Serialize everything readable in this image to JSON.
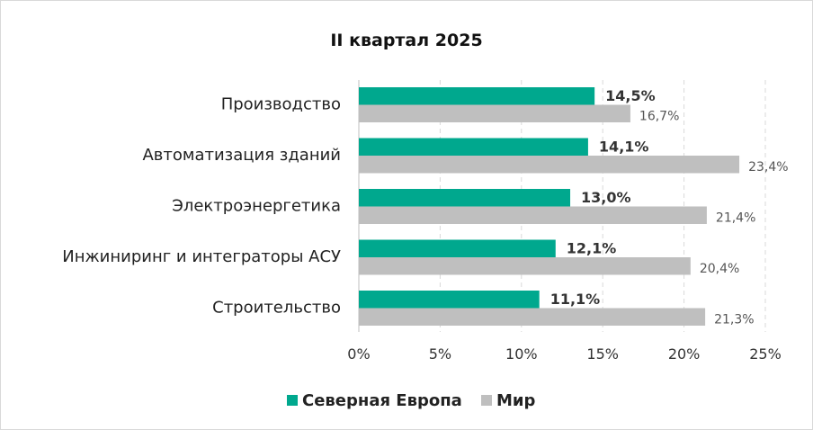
{
  "chart_data": {
    "type": "bar",
    "orientation": "horizontal",
    "title": "II квартал 2025",
    "categories": [
      "Производство",
      "Автоматизация зданий",
      "Электроэнергетика",
      "Инжиниринг и интеграторы АСУ",
      "Строительство"
    ],
    "series": [
      {
        "name": "Северная Европа",
        "values": [
          14.5,
          14.1,
          13.0,
          12.1,
          11.1
        ],
        "labels": [
          "14,5%",
          "14,1%",
          "13,0%",
          "12,1%",
          "11,1%"
        ],
        "color": "#00a88e"
      },
      {
        "name": "Мир",
        "values": [
          16.7,
          23.4,
          21.4,
          20.4,
          21.3
        ],
        "labels": [
          "16,7%",
          "23,4%",
          "21,4%",
          "20,4%",
          "21,3%"
        ],
        "color": "#bfbfbf"
      }
    ],
    "xlim": [
      0,
      25
    ],
    "xticks": [
      0,
      5,
      10,
      15,
      20,
      25
    ],
    "xtick_labels": [
      "0%",
      "5%",
      "10%",
      "15%",
      "20%",
      "25%"
    ],
    "grid": "vertical dashed",
    "legend": "bottom"
  }
}
